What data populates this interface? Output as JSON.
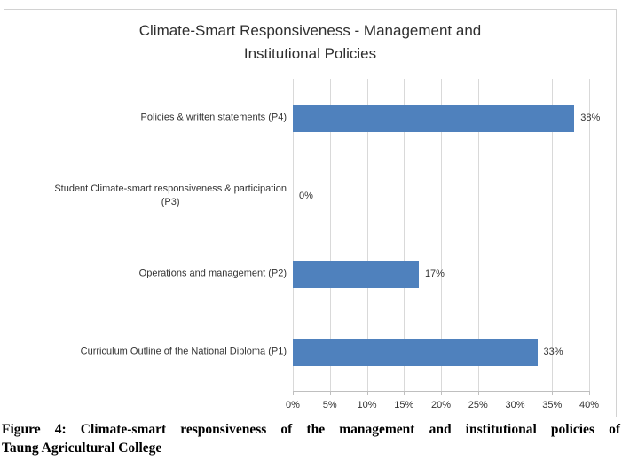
{
  "chart_data": {
    "type": "bar",
    "orientation": "horizontal",
    "title": "Climate-Smart Responsiveness - Management and\nInstitutional Policies",
    "categories_top_to_bottom": [
      "Policies & written statements (P4)",
      "Student Climate-smart responsiveness & participation\n(P3)",
      "Operations and management (P2)",
      "Curriculum Outline of the National Diploma (P1)"
    ],
    "values": [
      38,
      0,
      17,
      33
    ],
    "data_labels": [
      "38%",
      "0%",
      "17%",
      "33%"
    ],
    "xlim": [
      0,
      40
    ],
    "x_tick_values": [
      0,
      5,
      10,
      15,
      20,
      25,
      30,
      35,
      40
    ],
    "x_tick_labels": [
      "0%",
      "5%",
      "10%",
      "15%",
      "20%",
      "25%",
      "30%",
      "35%",
      "40%"
    ],
    "grid": true,
    "legend": false,
    "bar_color": "#4f81bd",
    "gridline_color": "#d9d9d9",
    "axis_line_color": "#bfbfbf",
    "text_color": "#333333"
  },
  "caption": {
    "line1": "Figure 4: Climate-smart responsiveness of the management and institutional policies of",
    "line2": "Taung Agricultural College"
  }
}
